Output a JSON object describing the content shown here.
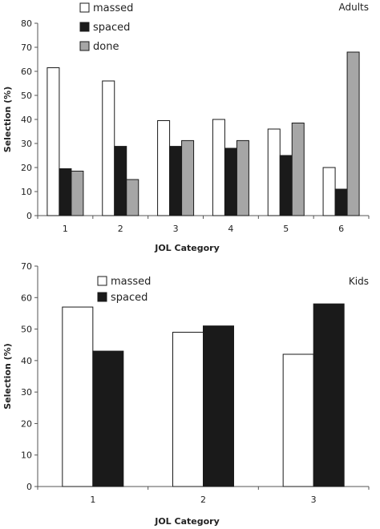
{
  "chart_data": [
    {
      "type": "bar",
      "title": "Adults",
      "xlabel": "JOL Category",
      "ylabel": "Selection (%)",
      "ylim": [
        0,
        80
      ],
      "yticks": [
        0,
        10,
        20,
        30,
        40,
        50,
        60,
        70,
        80
      ],
      "categories": [
        "1",
        "2",
        "3",
        "4",
        "5",
        "6"
      ],
      "series": [
        {
          "name": "massed",
          "color": "#ffffff",
          "values": [
            61.5,
            56,
            39.5,
            40,
            36,
            20
          ]
        },
        {
          "name": "spaced",
          "color": "#1a1a1a",
          "values": [
            19.5,
            28.8,
            28.8,
            28,
            25,
            11
          ]
        },
        {
          "name": "done",
          "color": "#a6a6a6",
          "values": [
            18.5,
            15,
            31.2,
            31.2,
            38.5,
            68
          ]
        }
      ],
      "legend_position": "top-left",
      "grid": false
    },
    {
      "type": "bar",
      "title": "Kids",
      "xlabel": "JOL Category",
      "ylabel": "Selection (%)",
      "ylim": [
        0,
        70
      ],
      "yticks": [
        0,
        10,
        20,
        30,
        40,
        50,
        60,
        70
      ],
      "categories": [
        "1",
        "2",
        "3"
      ],
      "series": [
        {
          "name": "massed",
          "color": "#ffffff",
          "values": [
            57,
            49,
            42
          ]
        },
        {
          "name": "spaced",
          "color": "#1a1a1a",
          "values": [
            43,
            51,
            58
          ]
        }
      ],
      "legend_position": "top-left",
      "grid": false
    }
  ]
}
